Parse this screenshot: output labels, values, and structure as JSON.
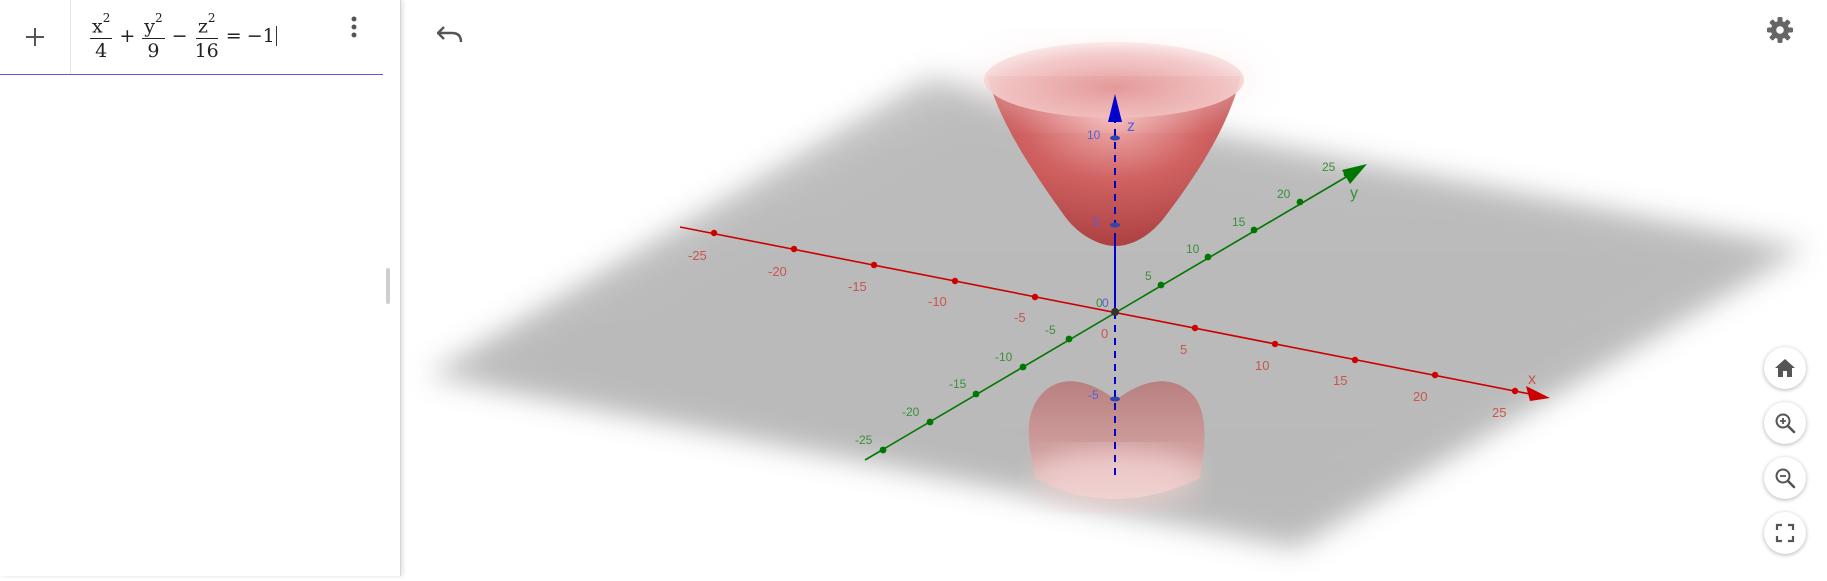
{
  "algebra": {
    "add_label": "+",
    "expression": {
      "term1_num_var": "x",
      "term1_num_exp": "2",
      "term1_den": "4",
      "op1": "+",
      "term2_num_var": "y",
      "term2_num_exp": "2",
      "term2_den": "9",
      "op2": "−",
      "term3_num_var": "z",
      "term3_num_exp": "2",
      "term3_den": "16",
      "equals": "=",
      "rhs": "−1"
    }
  },
  "toolbar": {
    "undo_icon": "undo-icon",
    "settings_icon": "gear-icon"
  },
  "view_controls": [
    "home-icon",
    "zoom-in-icon",
    "zoom-out-icon",
    "fullscreen-icon"
  ],
  "axes": {
    "x_label": "x",
    "y_label": "y",
    "z_label": "z",
    "origin_label": "0",
    "x_ticks": [
      "-25",
      "-20",
      "-15",
      "-10",
      "-5",
      "5",
      "10",
      "15",
      "20",
      "25"
    ],
    "y_ticks": [
      "-25",
      "-20",
      "-15",
      "-10",
      "-5",
      "5",
      "10",
      "15",
      "20",
      "25"
    ],
    "z_ticks": [
      "10",
      "5",
      "-5"
    ],
    "colors": {
      "x": "#cc0000",
      "y": "#007700",
      "z": "#0000cc",
      "surface": "#d05050"
    }
  }
}
